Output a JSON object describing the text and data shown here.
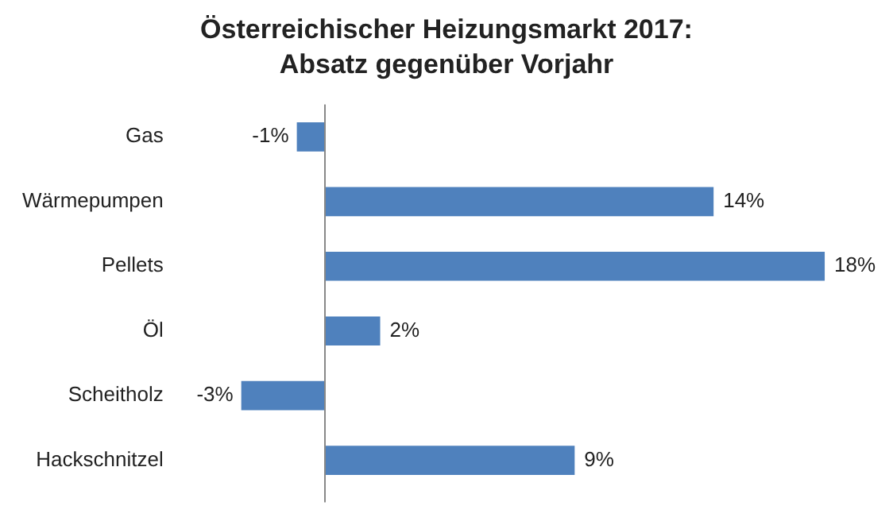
{
  "chart_data": {
    "type": "bar",
    "orientation": "horizontal",
    "title": "Österreichischer Heizungsmarkt 2017: Absatz gegenüber Vorjahr",
    "categories": [
      "Gas",
      "Wärmepumpen",
      "Pellets",
      "Öl",
      "Scheitholz",
      "Hackschnitzel"
    ],
    "values": [
      -1,
      14,
      18,
      2,
      -3,
      9
    ],
    "value_labels": [
      "-1%",
      "14%",
      "18%",
      "2%",
      "-3%",
      "9%"
    ],
    "color": "#4f81bd",
    "tick_labels": "y"
  }
}
